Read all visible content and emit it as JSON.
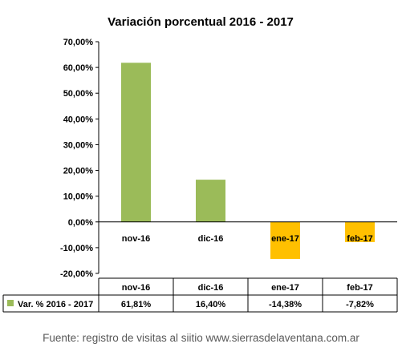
{
  "chart_data": {
    "type": "bar",
    "title": "Variación porcentual  2016 - 2017",
    "categories": [
      "nov-16",
      "dic-16",
      "ene-17",
      "feb-17"
    ],
    "series": [
      {
        "name": "Var. % 2016 - 2017",
        "values": [
          61.81,
          16.4,
          -14.38,
          -7.82
        ]
      }
    ],
    "ylim": [
      -20,
      70
    ],
    "yticks": [
      70,
      60,
      50,
      40,
      30,
      20,
      10,
      0,
      -10,
      -20
    ],
    "ytick_labels": [
      "70,00%",
      "60,00%",
      "50,00%",
      "40,00%",
      "30,00%",
      "20,00%",
      "10,00%",
      "0,00%",
      "-10,00%",
      "-20,00%"
    ],
    "grid": false,
    "legend": "data-table-left",
    "bar_colors": [
      "#9BBB59",
      "#9BBB59",
      "#FFC000",
      "#FFC000"
    ],
    "data_table": {
      "row_label": "Var. % 2016 - 2017",
      "values": [
        "61,81%",
        "16,40%",
        "-14,38%",
        "-7,82%"
      ]
    }
  },
  "footer": {
    "source": "Fuente: registro de visitas al siitio www.sierrasdelaventana.com.ar"
  }
}
